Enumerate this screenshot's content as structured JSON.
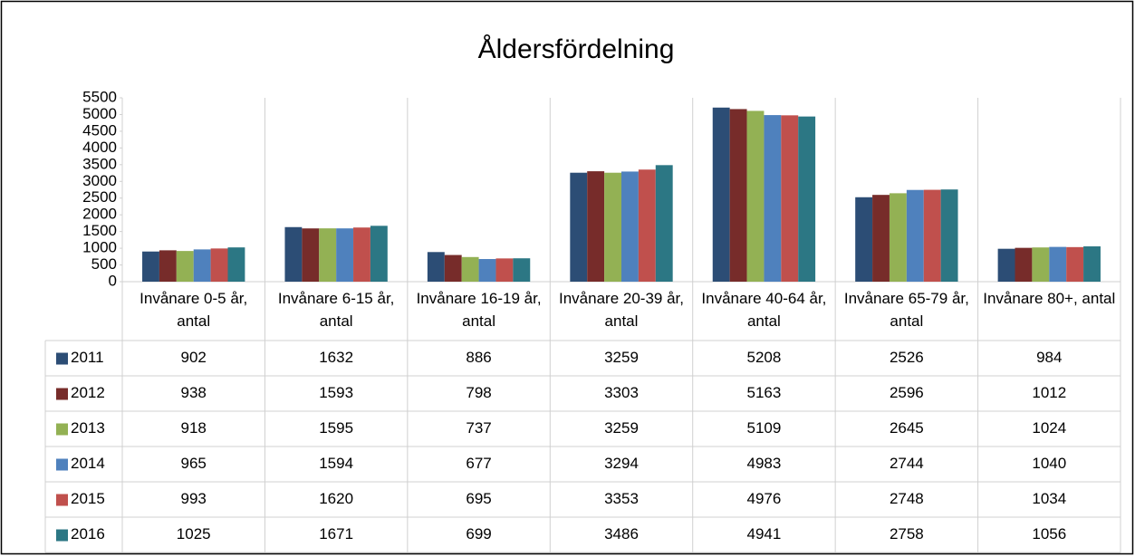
{
  "chart_data": {
    "type": "bar",
    "title": "Åldersfördelning",
    "categories": [
      "Invånare 0-5 år, antal",
      "Invånare 6-15 år, antal",
      "Invånare 16-19 år, antal",
      "Invånare 20-39 år, antal",
      "Invånare 40-64 år, antal",
      "Invånare 65-79 år, antal",
      "Invånare 80+, antal"
    ],
    "series": [
      {
        "name": "2011",
        "color": "#2c4d75",
        "values": [
          902,
          1632,
          886,
          3259,
          5208,
          2526,
          984
        ]
      },
      {
        "name": "2012",
        "color": "#772c2a",
        "values": [
          938,
          1593,
          798,
          3303,
          5163,
          2596,
          1012
        ]
      },
      {
        "name": "2013",
        "color": "#93b154",
        "values": [
          918,
          1595,
          737,
          3259,
          5109,
          2645,
          1024
        ]
      },
      {
        "name": "2014",
        "color": "#4f81bd",
        "values": [
          965,
          1594,
          677,
          3294,
          4983,
          2744,
          1040
        ]
      },
      {
        "name": "2015",
        "color": "#c0504d",
        "values": [
          993,
          1620,
          695,
          3353,
          4976,
          2748,
          1034
        ]
      },
      {
        "name": "2016",
        "color": "#2c7784",
        "values": [
          1025,
          1671,
          699,
          3486,
          4941,
          2758,
          1056
        ]
      }
    ],
    "ylim": [
      0,
      5500
    ],
    "yticks": [
      0,
      500,
      1000,
      1500,
      2000,
      2500,
      3000,
      3500,
      4000,
      4500,
      5000,
      5500
    ],
    "grid": false,
    "legend": "data-table"
  }
}
